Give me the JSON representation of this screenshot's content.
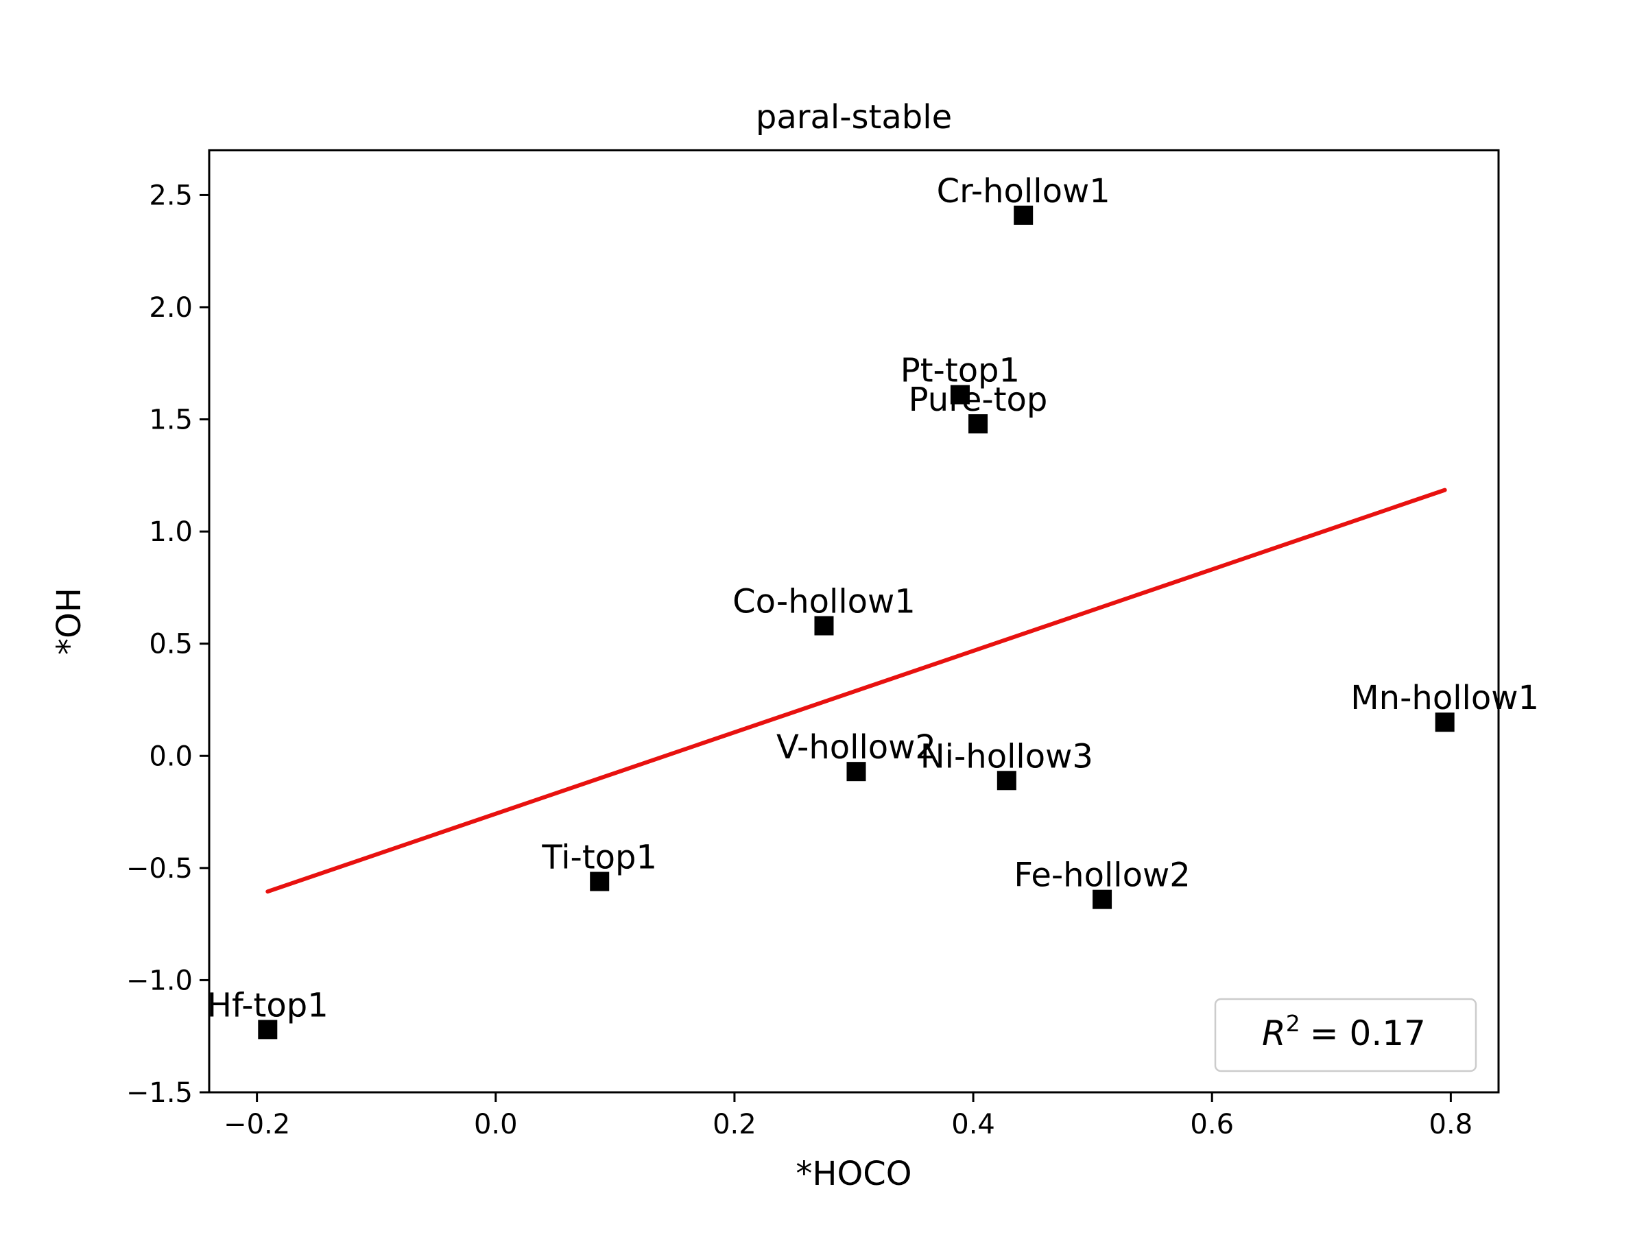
{
  "chart_data": {
    "type": "scatter",
    "title": "paral-stable",
    "xlabel": "*HOCO",
    "ylabel": "*OH",
    "xlim": [
      -0.24,
      0.84
    ],
    "ylim": [
      -1.5,
      2.7
    ],
    "x_ticks": [
      -0.2,
      0.0,
      0.2,
      0.4,
      0.6,
      0.8
    ],
    "x_tick_labels": [
      "−0.2",
      "0.0",
      "0.2",
      "0.4",
      "0.6",
      "0.8"
    ],
    "y_ticks": [
      -1.5,
      -1.0,
      -0.5,
      0.0,
      0.5,
      1.0,
      1.5,
      2.0,
      2.5
    ],
    "y_tick_labels": [
      "−1.5",
      "−1.0",
      "−0.5",
      "0.0",
      "0.5",
      "1.0",
      "1.5",
      "2.0",
      "2.5"
    ],
    "grid": false,
    "points": [
      {
        "label": "Cr-hollow1",
        "x": 0.442,
        "y": 2.41
      },
      {
        "label": "Pt-top1",
        "x": 0.389,
        "y": 1.61
      },
      {
        "label": "Pure-top",
        "x": 0.404,
        "y": 1.48
      },
      {
        "label": "Co-hollow1",
        "x": 0.275,
        "y": 0.58
      },
      {
        "label": "Mn-hollow1",
        "x": 0.795,
        "y": 0.15
      },
      {
        "label": "V-hollow2",
        "x": 0.302,
        "y": -0.07
      },
      {
        "label": "Ni-hollow3",
        "x": 0.428,
        "y": -0.11
      },
      {
        "label": "Ti-top1",
        "x": 0.087,
        "y": -0.56
      },
      {
        "label": "Fe-hollow2",
        "x": 0.508,
        "y": -0.64
      },
      {
        "label": "Hf-top1",
        "x": -0.191,
        "y": -1.22
      }
    ],
    "marker": {
      "shape": "square",
      "color": "#000000"
    },
    "fit_line": {
      "color": "#e8110f",
      "x": [
        -0.191,
        0.795
      ],
      "y": [
        -0.605,
        1.185
      ]
    },
    "legend": {
      "placement": "lower-right",
      "r2_symbol": "R",
      "r2_exponent": "2",
      "r2_value": "= 0.17"
    }
  }
}
